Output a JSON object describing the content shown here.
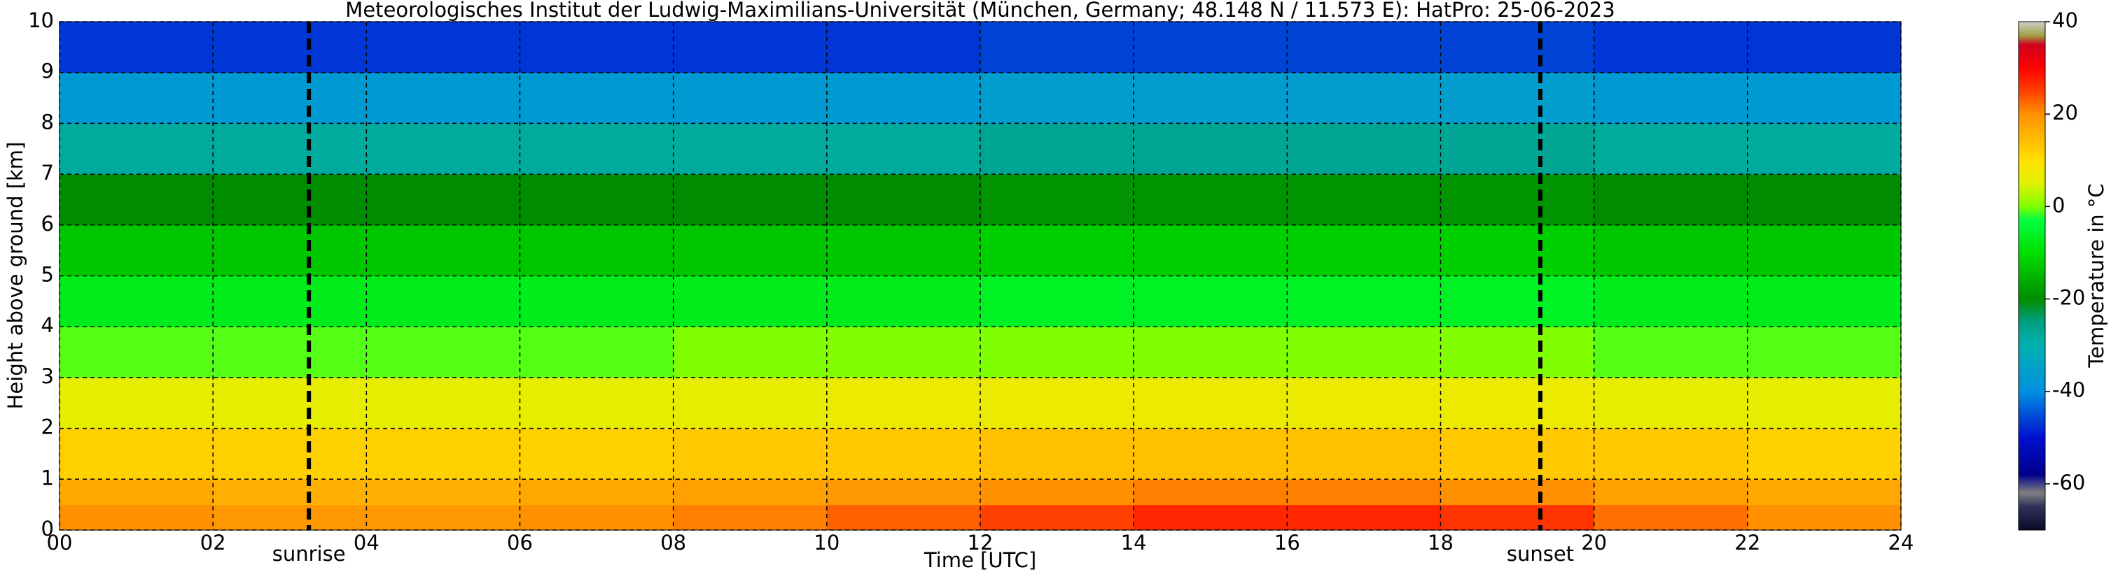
{
  "chart_data": {
    "type": "heatmap",
    "title": "Meteorologisches Institut der Ludwig-Maximilians-Universität (München, Germany; 48.148 N / 11.573 E):    HatPro: 25-06-2023",
    "x_label": "Time [UTC]",
    "y_label": "Height above ground [km]",
    "colorbar_label": "Temperature in °C",
    "xlim": [
      0,
      24
    ],
    "xticks": [
      {
        "value": 0,
        "label": "00"
      },
      {
        "value": 2,
        "label": "02"
      },
      {
        "value": 4,
        "label": "04"
      },
      {
        "value": 6,
        "label": "06"
      },
      {
        "value": 8,
        "label": "08"
      },
      10,
      12,
      14,
      16,
      18,
      20,
      22,
      24
    ],
    "ylim": [
      0,
      10
    ],
    "yticks": [
      0,
      1,
      2,
      3,
      4,
      5,
      6,
      7,
      8,
      9,
      10
    ],
    "clim": [
      -70,
      40
    ],
    "cticks": [
      -60,
      -40,
      -20,
      0,
      20,
      40
    ],
    "grid": true,
    "colorscale": [
      [
        -70,
        "#0a0a2a"
      ],
      [
        -65,
        "#30305a"
      ],
      [
        -62,
        "#808080"
      ],
      [
        -58,
        "#00008c"
      ],
      [
        -50,
        "#0010d0"
      ],
      [
        -40,
        "#0090e0"
      ],
      [
        -30,
        "#00b0b0"
      ],
      [
        -25,
        "#00a080"
      ],
      [
        -20,
        "#008c00"
      ],
      [
        -10,
        "#00e000"
      ],
      [
        -3,
        "#00ff40"
      ],
      [
        0,
        "#80ff00"
      ],
      [
        5,
        "#e0f000"
      ],
      [
        10,
        "#ffe000"
      ],
      [
        20,
        "#ff9000"
      ],
      [
        25,
        "#ff4000"
      ],
      [
        30,
        "#ff0000"
      ],
      [
        35,
        "#d00020"
      ],
      [
        37,
        "#a0a040"
      ],
      [
        40,
        "#d0d0d0"
      ]
    ],
    "x_edges": [
      0,
      2,
      4,
      6,
      8,
      10,
      12,
      14,
      16,
      18,
      20,
      22,
      24
    ],
    "y_edges": [
      0,
      0.5,
      1,
      2,
      3,
      4,
      5,
      6,
      7,
      8,
      9,
      10
    ],
    "values": [
      [
        20,
        19,
        19,
        20,
        21,
        23,
        25,
        27,
        27,
        26,
        22,
        20
      ],
      [
        17,
        16,
        16,
        17,
        18,
        19,
        20,
        21,
        21,
        20,
        18,
        17
      ],
      [
        12,
        12,
        12,
        12,
        13,
        13,
        14,
        14,
        14,
        13,
        13,
        12
      ],
      [
        6,
        6,
        6,
        6,
        6,
        7,
        7,
        7,
        7,
        7,
        6,
        6
      ],
      [
        -1,
        -1,
        -1,
        -1,
        0,
        0,
        0,
        0,
        0,
        0,
        -1,
        -1
      ],
      [
        -7,
        -7,
        -7,
        -7,
        -7,
        -7,
        -6,
        -6,
        -6,
        -6,
        -7,
        -7
      ],
      [
        -13,
        -13,
        -13,
        -13,
        -13,
        -13,
        -12,
        -12,
        -12,
        -12,
        -13,
        -13
      ],
      [
        -20,
        -20,
        -20,
        -20,
        -20,
        -20,
        -19,
        -19,
        -19,
        -19,
        -20,
        -20
      ],
      [
        -28,
        -28,
        -28,
        -28,
        -28,
        -28,
        -27,
        -27,
        -27,
        -27,
        -28,
        -28
      ],
      [
        -37,
        -37,
        -37,
        -37,
        -37,
        -37,
        -36,
        -36,
        -36,
        -36,
        -37,
        -37
      ],
      [
        -47,
        -47,
        -47,
        -47,
        -47,
        -47,
        -46,
        -46,
        -46,
        -46,
        -47,
        -47
      ]
    ],
    "annotations": [
      {
        "x": 3.25,
        "label": "sunrise"
      },
      {
        "x": 19.3,
        "label": "sunset"
      }
    ]
  }
}
